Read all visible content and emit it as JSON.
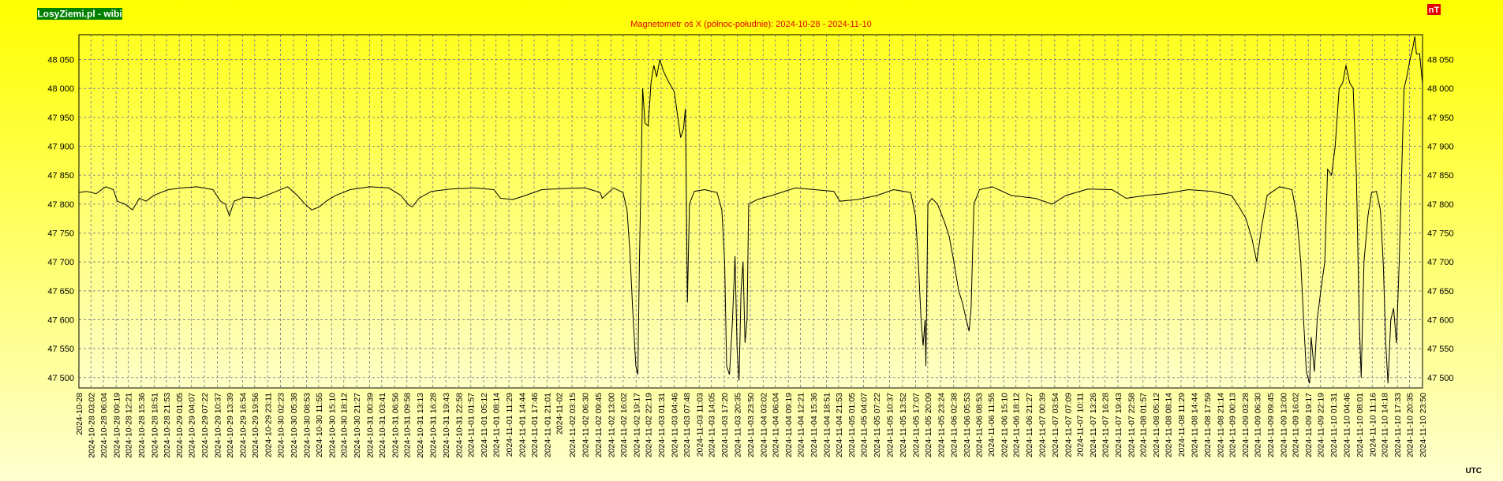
{
  "brand": "LosyZiemi.pl - wibi",
  "unit": "nT",
  "timezone": "UTC",
  "chart_data": {
    "type": "line",
    "title": "Magnetometr oś X (północ-południe): 2024-10-28 - 2024-11-10",
    "color": "#000000",
    "grid": true,
    "xlim": [
      0,
      335.83
    ],
    "ylim": [
      47482,
      48093
    ],
    "yticks": [
      {
        "value": 47500,
        "label": "47 500"
      },
      {
        "value": 47550,
        "label": "47 550"
      },
      {
        "value": 47600,
        "label": "47 600"
      },
      {
        "value": 47650,
        "label": "47 650"
      },
      {
        "value": 47700,
        "label": "47 700"
      },
      {
        "value": 47750,
        "label": "47 750"
      },
      {
        "value": 47800,
        "label": "47 800"
      },
      {
        "value": 47850,
        "label": "47 850"
      },
      {
        "value": 47900,
        "label": "47 900"
      },
      {
        "value": 47950,
        "label": "47 950"
      },
      {
        "value": 48000,
        "label": "48 000"
      },
      {
        "value": 48050,
        "label": "48 050"
      }
    ],
    "xticks": [
      {
        "value": 0,
        "label": "2024-10-28"
      },
      {
        "value": 3.03,
        "label": "2024-10-28 03:02"
      },
      {
        "value": 6.07,
        "label": "2024-10-28 06:04"
      },
      {
        "value": 9.32,
        "label": "2024-10-28 09:19"
      },
      {
        "value": 12.35,
        "label": "2024-10-28 12:21"
      },
      {
        "value": 15.6,
        "label": "2024-10-28 15:36"
      },
      {
        "value": 18.85,
        "label": "2024-10-28 18:51"
      },
      {
        "value": 21.88,
        "label": "2024-10-28 21:53"
      },
      {
        "value": 25.08,
        "label": "2024-10-29 01:05"
      },
      {
        "value": 28.12,
        "label": "2024-10-29 04:07"
      },
      {
        "value": 31.37,
        "label": "2024-10-29 07:22"
      },
      {
        "value": 34.62,
        "label": "2024-10-29 10:37"
      },
      {
        "value": 37.65,
        "label": "2024-10-29 13:39"
      },
      {
        "value": 40.9,
        "label": "2024-10-29 16:54"
      },
      {
        "value": 43.93,
        "label": "2024-10-29 19:56"
      },
      {
        "value": 47.18,
        "label": "2024-10-29 23:11"
      },
      {
        "value": 50.38,
        "label": "2024-10-30 02:23"
      },
      {
        "value": 53.63,
        "label": "2024-10-30 05:38"
      },
      {
        "value": 56.88,
        "label": "2024-10-30 08:53"
      },
      {
        "value": 59.92,
        "label": "2024-10-30 11:55"
      },
      {
        "value": 63.17,
        "label": "2024-10-30 15:10"
      },
      {
        "value": 66.2,
        "label": "2024-10-30 18:12"
      },
      {
        "value": 69.45,
        "label": "2024-10-30 21:27"
      },
      {
        "value": 72.65,
        "label": "2024-10-31 00:39"
      },
      {
        "value": 75.68,
        "label": "2024-10-31 03:41"
      },
      {
        "value": 78.93,
        "label": "2024-10-31 06:56"
      },
      {
        "value": 81.97,
        "label": "2024-10-31 09:58"
      },
      {
        "value": 85.22,
        "label": "2024-10-31 13:13"
      },
      {
        "value": 88.47,
        "label": "2024-10-31 16:28"
      },
      {
        "value": 91.72,
        "label": "2024-10-31 19:43"
      },
      {
        "value": 94.97,
        "label": "2024-10-31 22:58"
      },
      {
        "value": 97.95,
        "label": "2024-11-01 01:57"
      },
      {
        "value": 101.2,
        "label": "2024-11-01 05:12"
      },
      {
        "value": 104.23,
        "label": "2024-11-01 08:14"
      },
      {
        "value": 107.48,
        "label": "2024-11-01 11:29"
      },
      {
        "value": 110.73,
        "label": "2024-11-01 14:44"
      },
      {
        "value": 113.77,
        "label": "2024-11-01 17:46"
      },
      {
        "value": 117.02,
        "label": "2024-11-01 21:01"
      },
      {
        "value": 120,
        "label": "2024-11-02"
      },
      {
        "value": 123.25,
        "label": "2024-11-02 03:15"
      },
      {
        "value": 126.5,
        "label": "2024-11-02 06:30"
      },
      {
        "value": 129.75,
        "label": "2024-11-02 09:45"
      },
      {
        "value": 133,
        "label": "2024-11-02 13:00"
      },
      {
        "value": 136.03,
        "label": "2024-11-02 16:02"
      },
      {
        "value": 139.28,
        "label": "2024-11-02 19:17"
      },
      {
        "value": 142.32,
        "label": "2024-11-02 22:19"
      },
      {
        "value": 145.52,
        "label": "2024-11-03 01:31"
      },
      {
        "value": 148.77,
        "label": "2024-11-03 04:46"
      },
      {
        "value": 151.8,
        "label": "2024-11-03 07:48"
      },
      {
        "value": 155.05,
        "label": "2024-11-03 11:03"
      },
      {
        "value": 158.08,
        "label": "2024-11-03 14:05"
      },
      {
        "value": 161.33,
        "label": "2024-11-03 17:20"
      },
      {
        "value": 164.58,
        "label": "2024-11-03 20:35"
      },
      {
        "value": 167.83,
        "label": "2024-11-03 23:50"
      },
      {
        "value": 171.03,
        "label": "2024-11-04 03:02"
      },
      {
        "value": 174.07,
        "label": "2024-11-04 06:04"
      },
      {
        "value": 177.32,
        "label": "2024-11-04 09:19"
      },
      {
        "value": 180.35,
        "label": "2024-11-04 12:21"
      },
      {
        "value": 183.6,
        "label": "2024-11-04 15:36"
      },
      {
        "value": 186.85,
        "label": "2024-11-04 18:51"
      },
      {
        "value": 189.88,
        "label": "2024-11-04 21:53"
      },
      {
        "value": 193.08,
        "label": "2024-11-05 01:05"
      },
      {
        "value": 196.12,
        "label": "2024-11-05 04:07"
      },
      {
        "value": 199.37,
        "label": "2024-11-05 07:22"
      },
      {
        "value": 202.62,
        "label": "2024-11-05 10:37"
      },
      {
        "value": 205.87,
        "label": "2024-11-05 13:52"
      },
      {
        "value": 209.12,
        "label": "2024-11-05 17:07"
      },
      {
        "value": 212.15,
        "label": "2024-11-05 20:09"
      },
      {
        "value": 215.4,
        "label": "2024-11-05 23:24"
      },
      {
        "value": 218.63,
        "label": "2024-11-06 02:38"
      },
      {
        "value": 221.88,
        "label": "2024-11-06 05:53"
      },
      {
        "value": 224.88,
        "label": "2024-11-06 08:53"
      },
      {
        "value": 227.92,
        "label": "2024-11-06 11:55"
      },
      {
        "value": 231.17,
        "label": "2024-11-06 15:10"
      },
      {
        "value": 234.2,
        "label": "2024-11-06 18:12"
      },
      {
        "value": 237.45,
        "label": "2024-11-06 21:27"
      },
      {
        "value": 240.65,
        "label": "2024-11-07 00:39"
      },
      {
        "value": 243.9,
        "label": "2024-11-07 03:54"
      },
      {
        "value": 247.15,
        "label": "2024-11-07 07:09"
      },
      {
        "value": 250.18,
        "label": "2024-11-07 10:11"
      },
      {
        "value": 253.43,
        "label": "2024-11-07 13:26"
      },
      {
        "value": 256.47,
        "label": "2024-11-07 16:28"
      },
      {
        "value": 259.72,
        "label": "2024-11-07 19:43"
      },
      {
        "value": 262.97,
        "label": "2024-11-07 22:58"
      },
      {
        "value": 265.95,
        "label": "2024-11-08 01:57"
      },
      {
        "value": 269.2,
        "label": "2024-11-08 05:12"
      },
      {
        "value": 272.23,
        "label": "2024-11-08 08:14"
      },
      {
        "value": 275.48,
        "label": "2024-11-08 11:29"
      },
      {
        "value": 278.73,
        "label": "2024-11-08 14:44"
      },
      {
        "value": 281.98,
        "label": "2024-11-08 17:59"
      },
      {
        "value": 285.23,
        "label": "2024-11-08 21:14"
      },
      {
        "value": 288.22,
        "label": "2024-11-09 00:13"
      },
      {
        "value": 291.47,
        "label": "2024-11-09 03:28"
      },
      {
        "value": 294.5,
        "label": "2024-11-09 06:30"
      },
      {
        "value": 297.75,
        "label": "2024-11-09 09:45"
      },
      {
        "value": 301,
        "label": "2024-11-09 13:00"
      },
      {
        "value": 304.03,
        "label": "2024-11-09 16:02"
      },
      {
        "value": 307.28,
        "label": "2024-11-09 19:17"
      },
      {
        "value": 310.32,
        "label": "2024-11-09 22:19"
      },
      {
        "value": 313.52,
        "label": "2024-11-10 01:31"
      },
      {
        "value": 316.77,
        "label": "2024-11-10 04:46"
      },
      {
        "value": 320.02,
        "label": "2024-11-10 08:01"
      },
      {
        "value": 323.27,
        "label": "2024-11-10 11:16"
      },
      {
        "value": 326.3,
        "label": "2024-11-10 14:18"
      },
      {
        "value": 329.55,
        "label": "2024-11-10 17:33"
      },
      {
        "value": 332.58,
        "label": "2024-11-10 20:35"
      },
      {
        "value": 335.83,
        "label": "2024-11-10 23:50"
      }
    ],
    "x": [
      0,
      1.9,
      4.3,
      6.7,
      8.6,
      9.6,
      11.5,
      13.4,
      15.1,
      16.8,
      18.7,
      22.3,
      25.9,
      29.5,
      33.5,
      35.4,
      36.6,
      37.6,
      38.8,
      41.4,
      45,
      48.6,
      52.2,
      54.6,
      56.5,
      58.2,
      60.1,
      61.8,
      64.2,
      67.8,
      72.6,
      77.4,
      80.5,
      82.2,
      83.3,
      85,
      88.1,
      92.9,
      98.9,
      103.7,
      105.4,
      108.5,
      111.6,
      115.7,
      121.7,
      126.5,
      130.3,
      130.8,
      133.6,
      136,
      137,
      137.7,
      138.4,
      139.2,
      139.7,
      140.1,
      140.9,
      141.5,
      142.3,
      143,
      143.7,
      144.4,
      145.2,
      146.1,
      147.5,
      148.8,
      149.7,
      150.4,
      151.1,
      151.6,
      152.1,
      152.6,
      153.8,
      156.4,
      159.5,
      160.7,
      161.4,
      161.9,
      162.6,
      163.3,
      164,
      164.5,
      165,
      165.5,
      166,
      166.5,
      167,
      167.4,
      169.6,
      173.2,
      179.1,
      183.9,
      188.7,
      190.2,
      194.7,
      199.5,
      203.6,
      207.9,
      209.1,
      209.8,
      210.5,
      211,
      211.5,
      211.7,
      212.2,
      213.2,
      214.6,
      216.3,
      217.5,
      218.7,
      219.9,
      220.8,
      221.8,
      222.5,
      223,
      223.7,
      225.1,
      228.3,
      233,
      239,
      243.3,
      246.7,
      252.2,
      258.2,
      261.8,
      266.6,
      271.4,
      277.3,
      283.3,
      288.1,
      290,
      291.7,
      293.2,
      294.4,
      295.6,
      297,
      300.1,
      303.2,
      304.4,
      305.4,
      306.1,
      306.8,
      307.6,
      308,
      308.8,
      309.5,
      310.4,
      311.4,
      312.1,
      313.1,
      314,
      315,
      315.9,
      316.7,
      317.6,
      318.5,
      319.3,
      320,
      320.5,
      321.2,
      322.2,
      323.1,
      324.3,
      325.3,
      326,
      326.7,
      327.2,
      327.9,
      328.6,
      329.3,
      330,
      330.8,
      331.2,
      331.9,
      332.7,
      333.4,
      333.9,
      334.3,
      335.1,
      335.8
    ],
    "values": [
      47820,
      47822,
      47818,
      47830,
      47825,
      47805,
      47800,
      47790,
      47810,
      47805,
      47815,
      47825,
      47828,
      47830,
      47825,
      47805,
      47800,
      47780,
      47805,
      47812,
      47810,
      47820,
      47830,
      47815,
      47800,
      47790,
      47795,
      47805,
      47815,
      47825,
      47830,
      47828,
      47815,
      47800,
      47795,
      47810,
      47822,
      47826,
      47828,
      47825,
      47810,
      47808,
      47815,
      47825,
      47827,
      47828,
      47820,
      47810,
      47828,
      47820,
      47790,
      47720,
      47620,
      47520,
      47505,
      47700,
      48000,
      47940,
      47935,
      48010,
      48040,
      48020,
      48050,
      48030,
      48010,
      47995,
      47950,
      47915,
      47930,
      47965,
      47630,
      47800,
      47822,
      47825,
      47820,
      47790,
      47700,
      47520,
      47505,
      47590,
      47710,
      47550,
      47495,
      47650,
      47700,
      47560,
      47600,
      47800,
      47808,
      47815,
      47828,
      47825,
      47822,
      47805,
      47808,
      47815,
      47825,
      47820,
      47780,
      47700,
      47600,
      47555,
      47600,
      47520,
      47800,
      47810,
      47800,
      47770,
      47745,
      47700,
      47650,
      47630,
      47600,
      47580,
      47620,
      47800,
      47825,
      47830,
      47815,
      47810,
      47800,
      47815,
      47826,
      47825,
      47810,
      47815,
      47818,
      47825,
      47822,
      47815,
      47795,
      47775,
      47740,
      47700,
      47760,
      47815,
      47830,
      47825,
      47780,
      47700,
      47600,
      47510,
      47490,
      47570,
      47510,
      47600,
      47650,
      47700,
      47860,
      47850,
      47900,
      48000,
      48010,
      48040,
      48010,
      48000,
      47850,
      47600,
      47500,
      47700,
      47780,
      47820,
      47822,
      47790,
      47700,
      47550,
      47490,
      47600,
      47620,
      47560,
      47700,
      47900,
      48000,
      48020,
      48050,
      48070,
      48090,
      48060,
      48060,
      48010
    ]
  }
}
